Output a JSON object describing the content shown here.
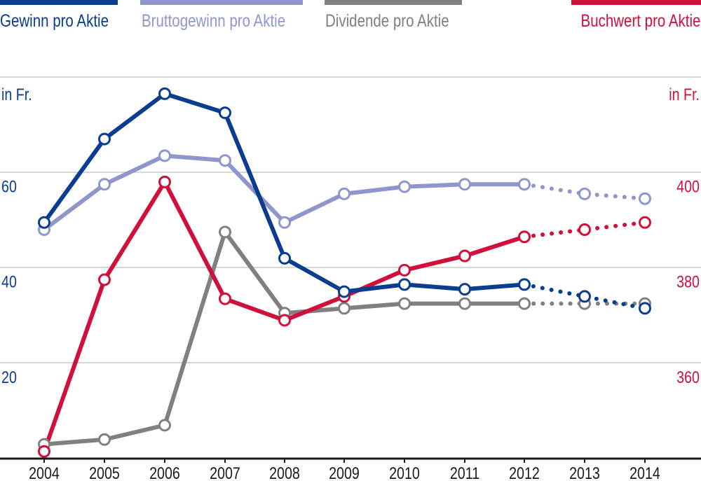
{
  "chart_data": {
    "type": "line",
    "categories": [
      "2004",
      "2005",
      "2006",
      "2007",
      "2008",
      "2009",
      "2010",
      "2011",
      "2012",
      "2013",
      "2014"
    ],
    "left_axis": {
      "unit_label": "in Fr.",
      "ticks": [
        "20",
        "40",
        "60"
      ],
      "tick_values": [
        20,
        40,
        60
      ],
      "range": [
        0,
        80
      ],
      "color": "#0a3d8f"
    },
    "right_axis": {
      "unit_label": "in Fr.",
      "ticks": [
        "360",
        "380",
        "400"
      ],
      "tick_values": [
        360,
        380,
        400
      ],
      "range": [
        340,
        420
      ],
      "color": "#d0103a"
    },
    "grid": true,
    "legend_position": "top",
    "forecast_from_index": 8,
    "series": [
      {
        "name": "Gewinn pro Aktie",
        "axis": "left",
        "color": "#0a3d8f",
        "values": [
          49.5,
          67.0,
          76.5,
          72.5,
          42.0,
          35.0,
          36.5,
          35.5,
          36.5,
          34.0,
          31.5
        ]
      },
      {
        "name": "Bruttogewinn pro Aktie",
        "axis": "left",
        "color": "#8f96cc",
        "values": [
          48.0,
          57.5,
          63.5,
          62.5,
          49.5,
          55.5,
          57.0,
          57.5,
          57.5,
          55.5,
          54.5
        ]
      },
      {
        "name": "Dividende pro Aktie",
        "axis": "left",
        "color": "#808080",
        "values": [
          3.0,
          4.0,
          7.0,
          47.5,
          30.5,
          31.5,
          32.5,
          32.5,
          32.5,
          32.5,
          32.5
        ]
      },
      {
        "name": "Buchwert pro Aktie",
        "axis": "right",
        "color": "#d0103a",
        "values": [
          341.5,
          377.5,
          398.0,
          373.5,
          369.0,
          374.0,
          379.5,
          382.5,
          386.5,
          388.0,
          389.5
        ]
      }
    ]
  }
}
